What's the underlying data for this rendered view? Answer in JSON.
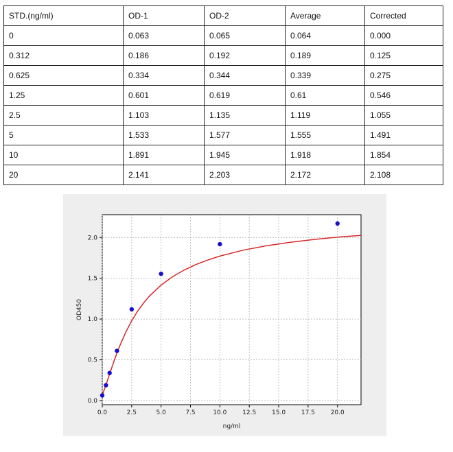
{
  "table": {
    "headers": [
      "STD.(ng/ml)",
      "OD-1",
      "OD-2",
      "Average",
      "Corrected"
    ],
    "rows": [
      [
        "0",
        "0.063",
        "0.065",
        "0.064",
        "0.000"
      ],
      [
        "0.312",
        "0.186",
        "0.192",
        "0.189",
        "0.125"
      ],
      [
        "0.625",
        "0.334",
        "0.344",
        "0.339",
        "0.275"
      ],
      [
        "1.25",
        "0.601",
        "0.619",
        "0.61",
        "0.546"
      ],
      [
        "2.5",
        "1.103",
        "1.135",
        "1.119",
        "1.055"
      ],
      [
        "5",
        "1.533",
        "1.577",
        "1.555",
        "1.491"
      ],
      [
        "10",
        "1.891",
        "1.945",
        "1.918",
        "1.854"
      ],
      [
        "20",
        "2.141",
        "2.203",
        "2.172",
        "2.108"
      ]
    ]
  },
  "chart_data": {
    "type": "scatter",
    "title": "",
    "xlabel": "ng/ml",
    "ylabel": "OD450",
    "xlim": [
      0,
      22
    ],
    "ylim": [
      -0.05,
      2.28
    ],
    "xticks": [
      0,
      2.5,
      5,
      7.5,
      10,
      12.5,
      15,
      17.5,
      20
    ],
    "xtick_labels": [
      "0.0",
      "2.5",
      "5.0",
      "7.5",
      "10.0",
      "12.5",
      "15.0",
      "17.5",
      "20.0"
    ],
    "yticks": [
      0,
      0.5,
      1,
      1.5,
      2
    ],
    "ytick_labels": [
      "0.0",
      "0.5",
      "1.0",
      "1.5",
      "2.0"
    ],
    "grid": true,
    "points": {
      "x": [
        0,
        0.312,
        0.625,
        1.25,
        2.5,
        5,
        10,
        20
      ],
      "y": [
        0.064,
        0.189,
        0.339,
        0.61,
        1.119,
        1.555,
        1.918,
        2.172
      ],
      "color": "#1a0dcc"
    },
    "fit_curve": {
      "color": "#d62728",
      "x": [
        0,
        0.25,
        0.5,
        0.75,
        1,
        1.25,
        1.5,
        2,
        2.5,
        3,
        3.5,
        4,
        5,
        6,
        7,
        8,
        9,
        10,
        12,
        14,
        16,
        18,
        20,
        22
      ],
      "y": [
        0.064,
        0.166,
        0.273,
        0.38,
        0.484,
        0.583,
        0.675,
        0.84,
        0.979,
        1.096,
        1.195,
        1.28,
        1.417,
        1.521,
        1.604,
        1.671,
        1.726,
        1.772,
        1.845,
        1.9,
        1.942,
        1.976,
        2.004,
        2.027
      ]
    }
  }
}
